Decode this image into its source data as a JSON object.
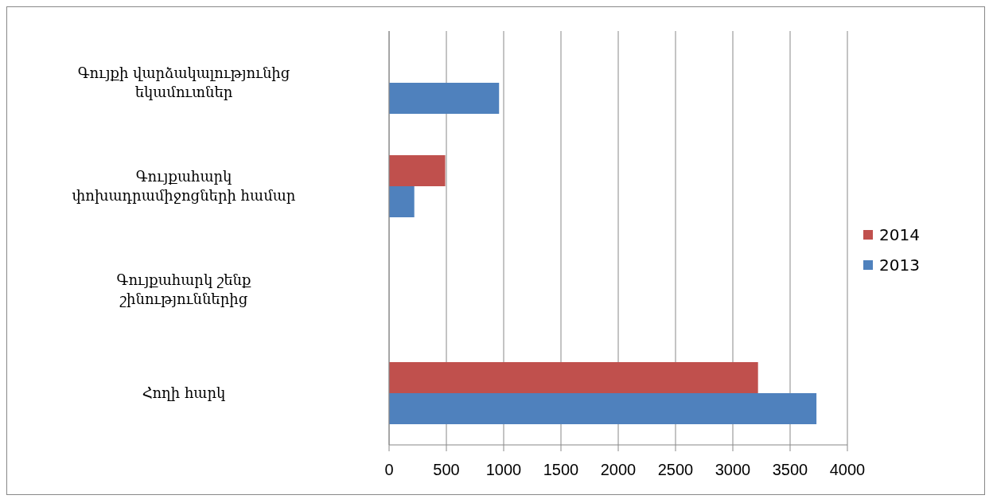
{
  "chart_data": {
    "type": "bar",
    "orientation": "horizontal",
    "categories": [
      "Գույքի վարձակալությունից եկամուտներ",
      "Գույքահարկ փոխադրամիջոցների համար",
      "Գույքահարկ շենք շինություններից",
      "Հողի հարկ"
    ],
    "series": [
      {
        "name": "2014",
        "color": "#c0504d",
        "values": [
          null,
          490,
          null,
          3220
        ]
      },
      {
        "name": "2013",
        "color": "#4f81bd",
        "values": [
          960,
          220,
          null,
          3730
        ]
      }
    ],
    "xlim": [
      0,
      4000
    ],
    "xticks": [
      0,
      500,
      1000,
      1500,
      2000,
      2500,
      3000,
      3500,
      4000
    ],
    "grid": "x",
    "legend": "right"
  }
}
